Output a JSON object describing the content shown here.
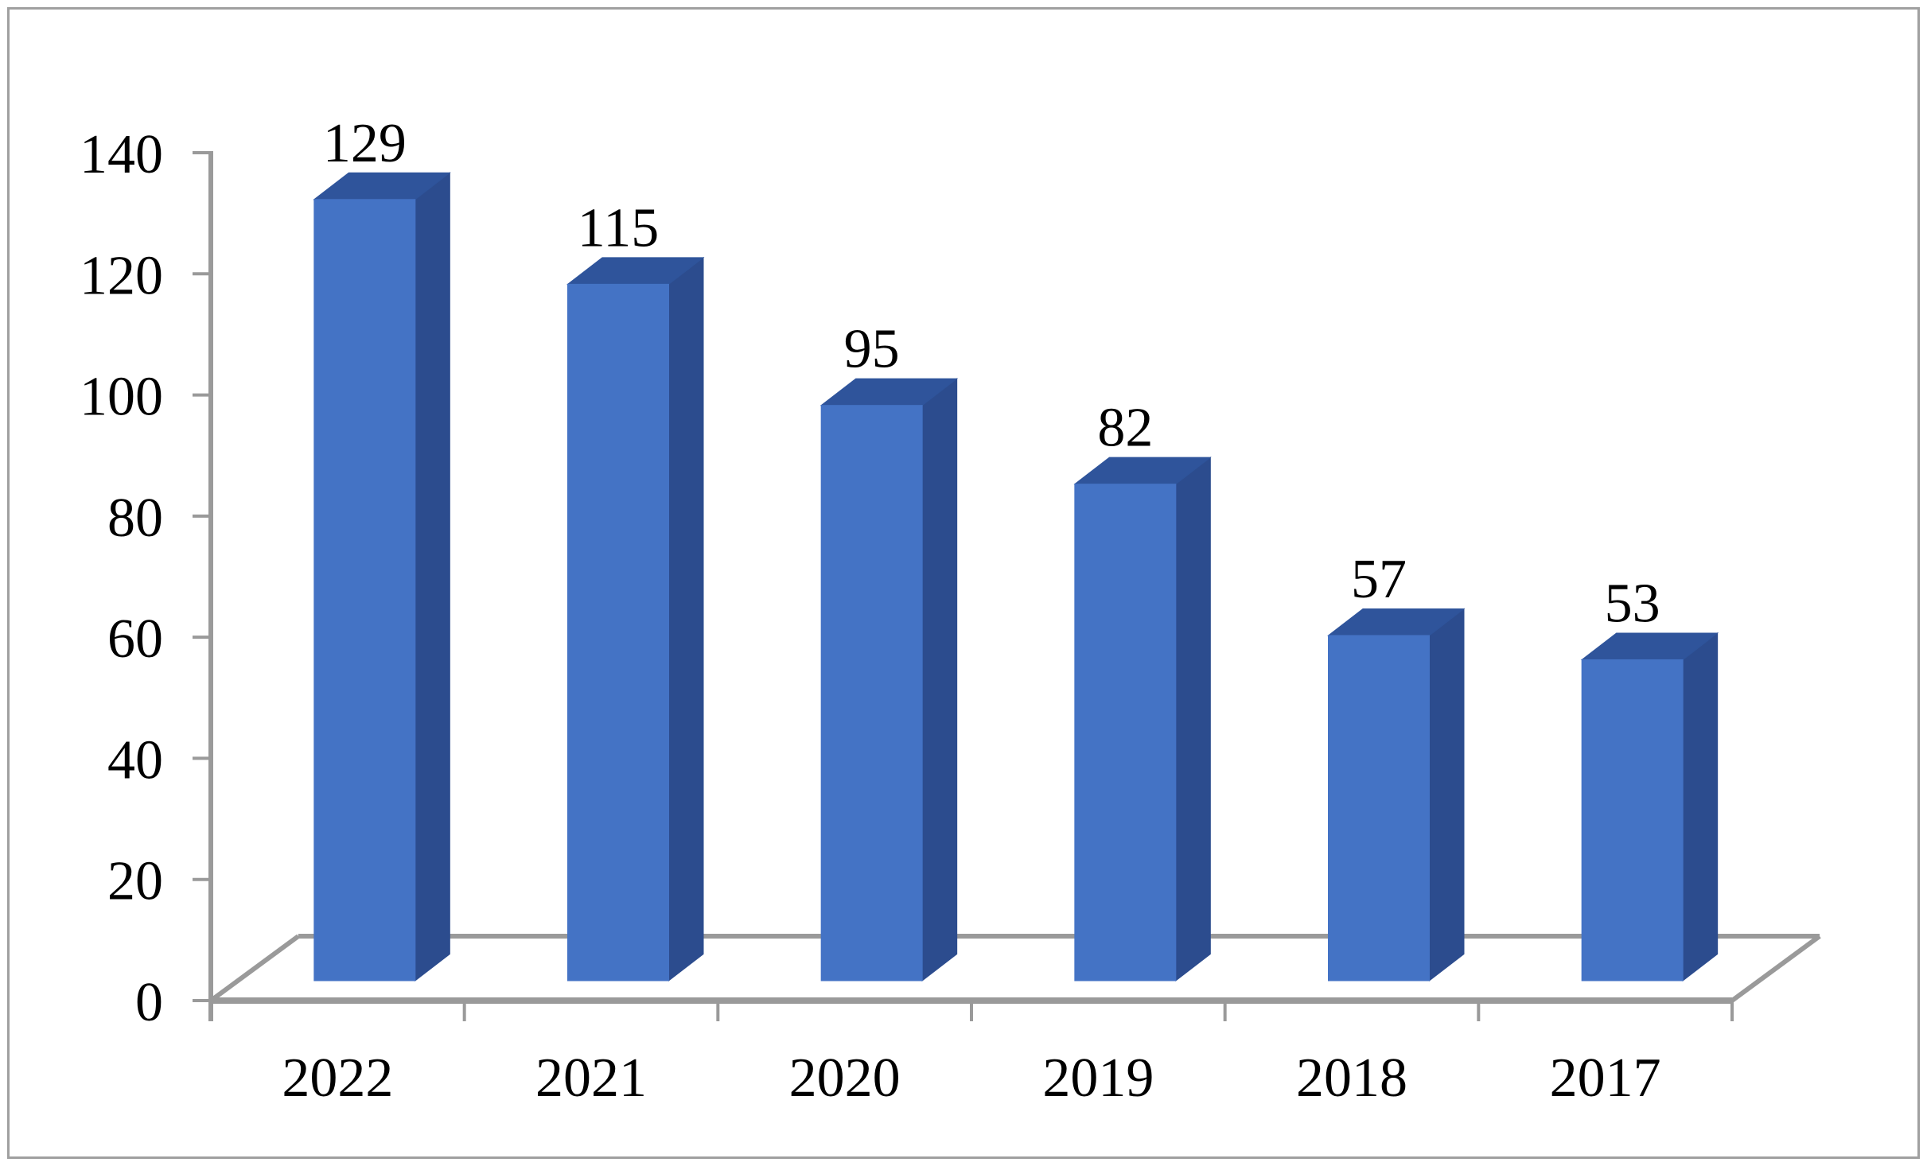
{
  "chart_data": {
    "type": "bar",
    "subtype": "3d-column",
    "title": "",
    "xlabel": "",
    "ylabel": "",
    "categories": [
      "2022",
      "2021",
      "2020",
      "2019",
      "2018",
      "2017"
    ],
    "values": [
      129,
      115,
      95,
      82,
      57,
      53
    ],
    "data_labels": [
      "129",
      "115",
      "95",
      "82",
      "57",
      "53"
    ],
    "ylim": [
      0,
      140
    ],
    "ytick_step": 20,
    "yticks": [
      0,
      20,
      40,
      60,
      80,
      100,
      120,
      140
    ],
    "ytick_labels": [
      "0",
      "20",
      "40",
      "60",
      "80",
      "100",
      "120",
      "140"
    ],
    "grid": false,
    "legend": false,
    "series_name": "",
    "colors": {
      "bar_front": "#4473c5",
      "bar_top": "#2f549b",
      "bar_side": "#2c4c8e",
      "axis": "#9a9a9a",
      "floor": "#9a9a9a",
      "text": "#000000",
      "frame_border": "#a0a0a0",
      "background": "#ffffff"
    }
  }
}
